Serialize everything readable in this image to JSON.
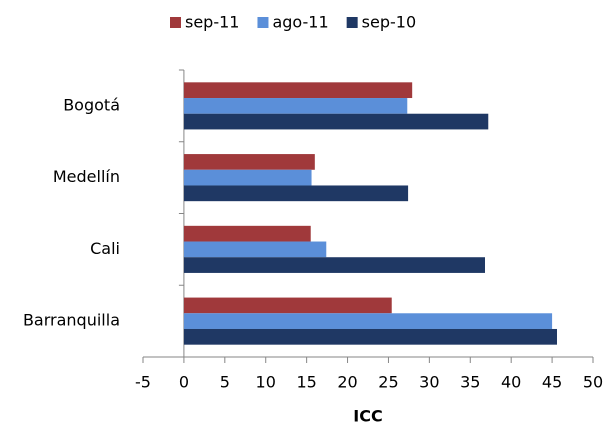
{
  "chart_data": {
    "type": "hbar",
    "categories": [
      "Bogotá",
      "Medellín",
      "Cali",
      "Barranquilla"
    ],
    "series": [
      {
        "name": "sep-11",
        "color": "#a0393b",
        "values": [
          27.9,
          16.0,
          15.5,
          25.4
        ]
      },
      {
        "name": "ago-11",
        "color": "#5b8fd9",
        "values": [
          27.3,
          15.6,
          17.4,
          45.0
        ]
      },
      {
        "name": "sep-10",
        "color": "#1f3864",
        "values": [
          37.2,
          27.4,
          36.8,
          45.6
        ]
      }
    ],
    "x_label": "ICC",
    "xlim": [
      -5,
      50
    ],
    "xticks": [
      -5,
      0,
      5,
      10,
      15,
      20,
      25,
      30,
      35,
      40,
      45,
      50
    ],
    "legend": "top"
  }
}
